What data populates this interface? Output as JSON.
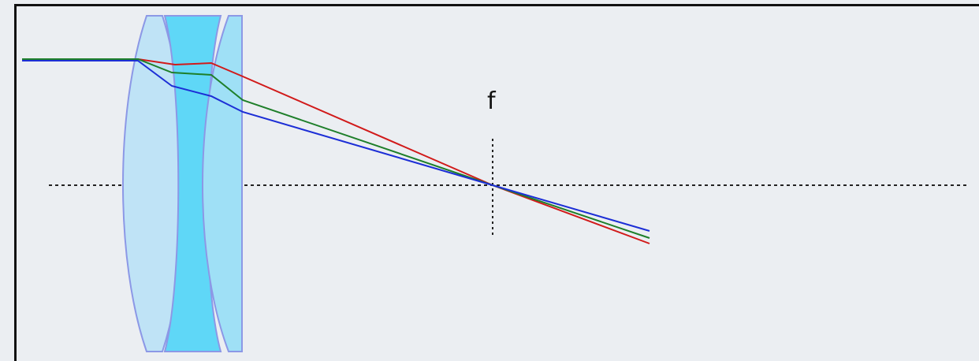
{
  "diagram": {
    "focal_label": "f",
    "colors": {
      "background": "#ebeef2",
      "axis": "#222222",
      "lens_light": "#bfe3f6",
      "lens_dark": "#5fd7f7",
      "lens_mid": "#9fe0f6",
      "lens_outline": "#8c98e6",
      "ray_red": "#d11a1a",
      "ray_green": "#1e7f2a",
      "ray_blue": "#1c2ed6"
    },
    "icons": {
      "lens_1": "biconvex-lens",
      "lens_2": "biconcave-lens",
      "lens_3": "planoconvex-lens"
    }
  }
}
